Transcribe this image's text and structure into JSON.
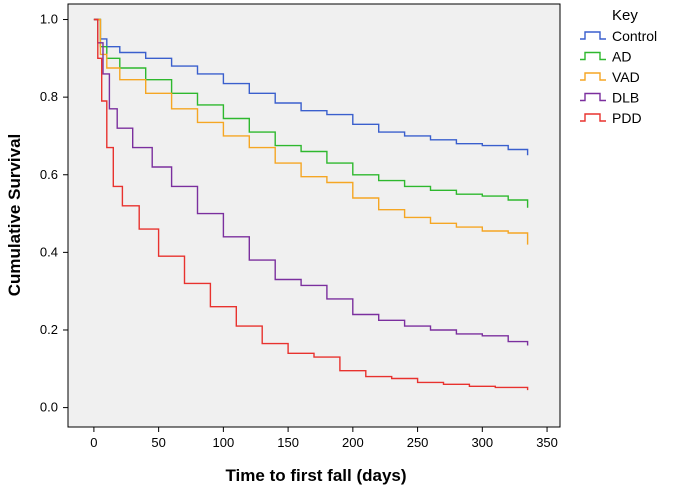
{
  "chart_data": {
    "type": "line",
    "step": true,
    "xlabel": "Time to first fall (days)",
    "ylabel": "Cumulative Survival",
    "xlim": [
      -20,
      360
    ],
    "ylim": [
      -0.05,
      1.04
    ],
    "x_ticks": [
      0,
      50,
      100,
      150,
      200,
      250,
      300,
      350
    ],
    "y_ticks": [
      0.0,
      0.2,
      0.4,
      0.6,
      0.8,
      1.0
    ],
    "x_tick_labels": [
      "0",
      "50",
      "100",
      "150",
      "200",
      "250",
      "300",
      "350"
    ],
    "y_tick_labels": [
      "0.0",
      "0.2",
      "0.4",
      "0.6",
      "0.8",
      "1.0"
    ],
    "grid": false,
    "background": "#f0f0f0",
    "legend": {
      "title": "Key",
      "position": "outside-right"
    },
    "series": [
      {
        "name": "Control",
        "color": "#3a5fcd",
        "points": [
          [
            0,
            1.0
          ],
          [
            5,
            0.95
          ],
          [
            10,
            0.93
          ],
          [
            20,
            0.915
          ],
          [
            40,
            0.9
          ],
          [
            60,
            0.88
          ],
          [
            80,
            0.86
          ],
          [
            100,
            0.835
          ],
          [
            120,
            0.81
          ],
          [
            140,
            0.785
          ],
          [
            160,
            0.765
          ],
          [
            180,
            0.755
          ],
          [
            200,
            0.73
          ],
          [
            220,
            0.71
          ],
          [
            240,
            0.7
          ],
          [
            260,
            0.69
          ],
          [
            280,
            0.68
          ],
          [
            300,
            0.675
          ],
          [
            320,
            0.665
          ],
          [
            335,
            0.65
          ]
        ]
      },
      {
        "name": "AD",
        "color": "#2eb82e",
        "points": [
          [
            0,
            1.0
          ],
          [
            5,
            0.93
          ],
          [
            10,
            0.9
          ],
          [
            20,
            0.875
          ],
          [
            40,
            0.845
          ],
          [
            60,
            0.81
          ],
          [
            80,
            0.78
          ],
          [
            100,
            0.745
          ],
          [
            120,
            0.71
          ],
          [
            140,
            0.675
          ],
          [
            160,
            0.66
          ],
          [
            180,
            0.63
          ],
          [
            200,
            0.6
          ],
          [
            220,
            0.585
          ],
          [
            240,
            0.57
          ],
          [
            260,
            0.56
          ],
          [
            280,
            0.55
          ],
          [
            300,
            0.545
          ],
          [
            320,
            0.535
          ],
          [
            335,
            0.515
          ]
        ]
      },
      {
        "name": "VAD",
        "color": "#f5a623",
        "points": [
          [
            0,
            1.0
          ],
          [
            5,
            0.91
          ],
          [
            10,
            0.875
          ],
          [
            20,
            0.845
          ],
          [
            40,
            0.81
          ],
          [
            60,
            0.77
          ],
          [
            80,
            0.735
          ],
          [
            100,
            0.7
          ],
          [
            120,
            0.67
          ],
          [
            140,
            0.63
          ],
          [
            160,
            0.595
          ],
          [
            180,
            0.58
          ],
          [
            200,
            0.54
          ],
          [
            220,
            0.51
          ],
          [
            240,
            0.49
          ],
          [
            260,
            0.475
          ],
          [
            280,
            0.465
          ],
          [
            300,
            0.455
          ],
          [
            320,
            0.45
          ],
          [
            335,
            0.42
          ]
        ]
      },
      {
        "name": "DLB",
        "color": "#7b2f9e",
        "points": [
          [
            0,
            1.0
          ],
          [
            3,
            0.94
          ],
          [
            7,
            0.86
          ],
          [
            12,
            0.77
          ],
          [
            18,
            0.72
          ],
          [
            30,
            0.67
          ],
          [
            45,
            0.62
          ],
          [
            60,
            0.57
          ],
          [
            80,
            0.5
          ],
          [
            100,
            0.44
          ],
          [
            120,
            0.38
          ],
          [
            140,
            0.33
          ],
          [
            160,
            0.315
          ],
          [
            180,
            0.28
          ],
          [
            200,
            0.24
          ],
          [
            220,
            0.225
          ],
          [
            240,
            0.21
          ],
          [
            260,
            0.2
          ],
          [
            280,
            0.19
          ],
          [
            300,
            0.185
          ],
          [
            320,
            0.17
          ],
          [
            335,
            0.16
          ]
        ]
      },
      {
        "name": "PDD",
        "color": "#e8322e",
        "points": [
          [
            0,
            1.0
          ],
          [
            3,
            0.9
          ],
          [
            6,
            0.79
          ],
          [
            10,
            0.67
          ],
          [
            15,
            0.57
          ],
          [
            22,
            0.52
          ],
          [
            35,
            0.46
          ],
          [
            50,
            0.39
          ],
          [
            70,
            0.32
          ],
          [
            90,
            0.26
          ],
          [
            110,
            0.21
          ],
          [
            130,
            0.165
          ],
          [
            150,
            0.14
          ],
          [
            170,
            0.13
          ],
          [
            190,
            0.095
          ],
          [
            210,
            0.08
          ],
          [
            230,
            0.075
          ],
          [
            250,
            0.065
          ],
          [
            270,
            0.06
          ],
          [
            290,
            0.055
          ],
          [
            310,
            0.052
          ],
          [
            335,
            0.045
          ]
        ]
      }
    ]
  }
}
